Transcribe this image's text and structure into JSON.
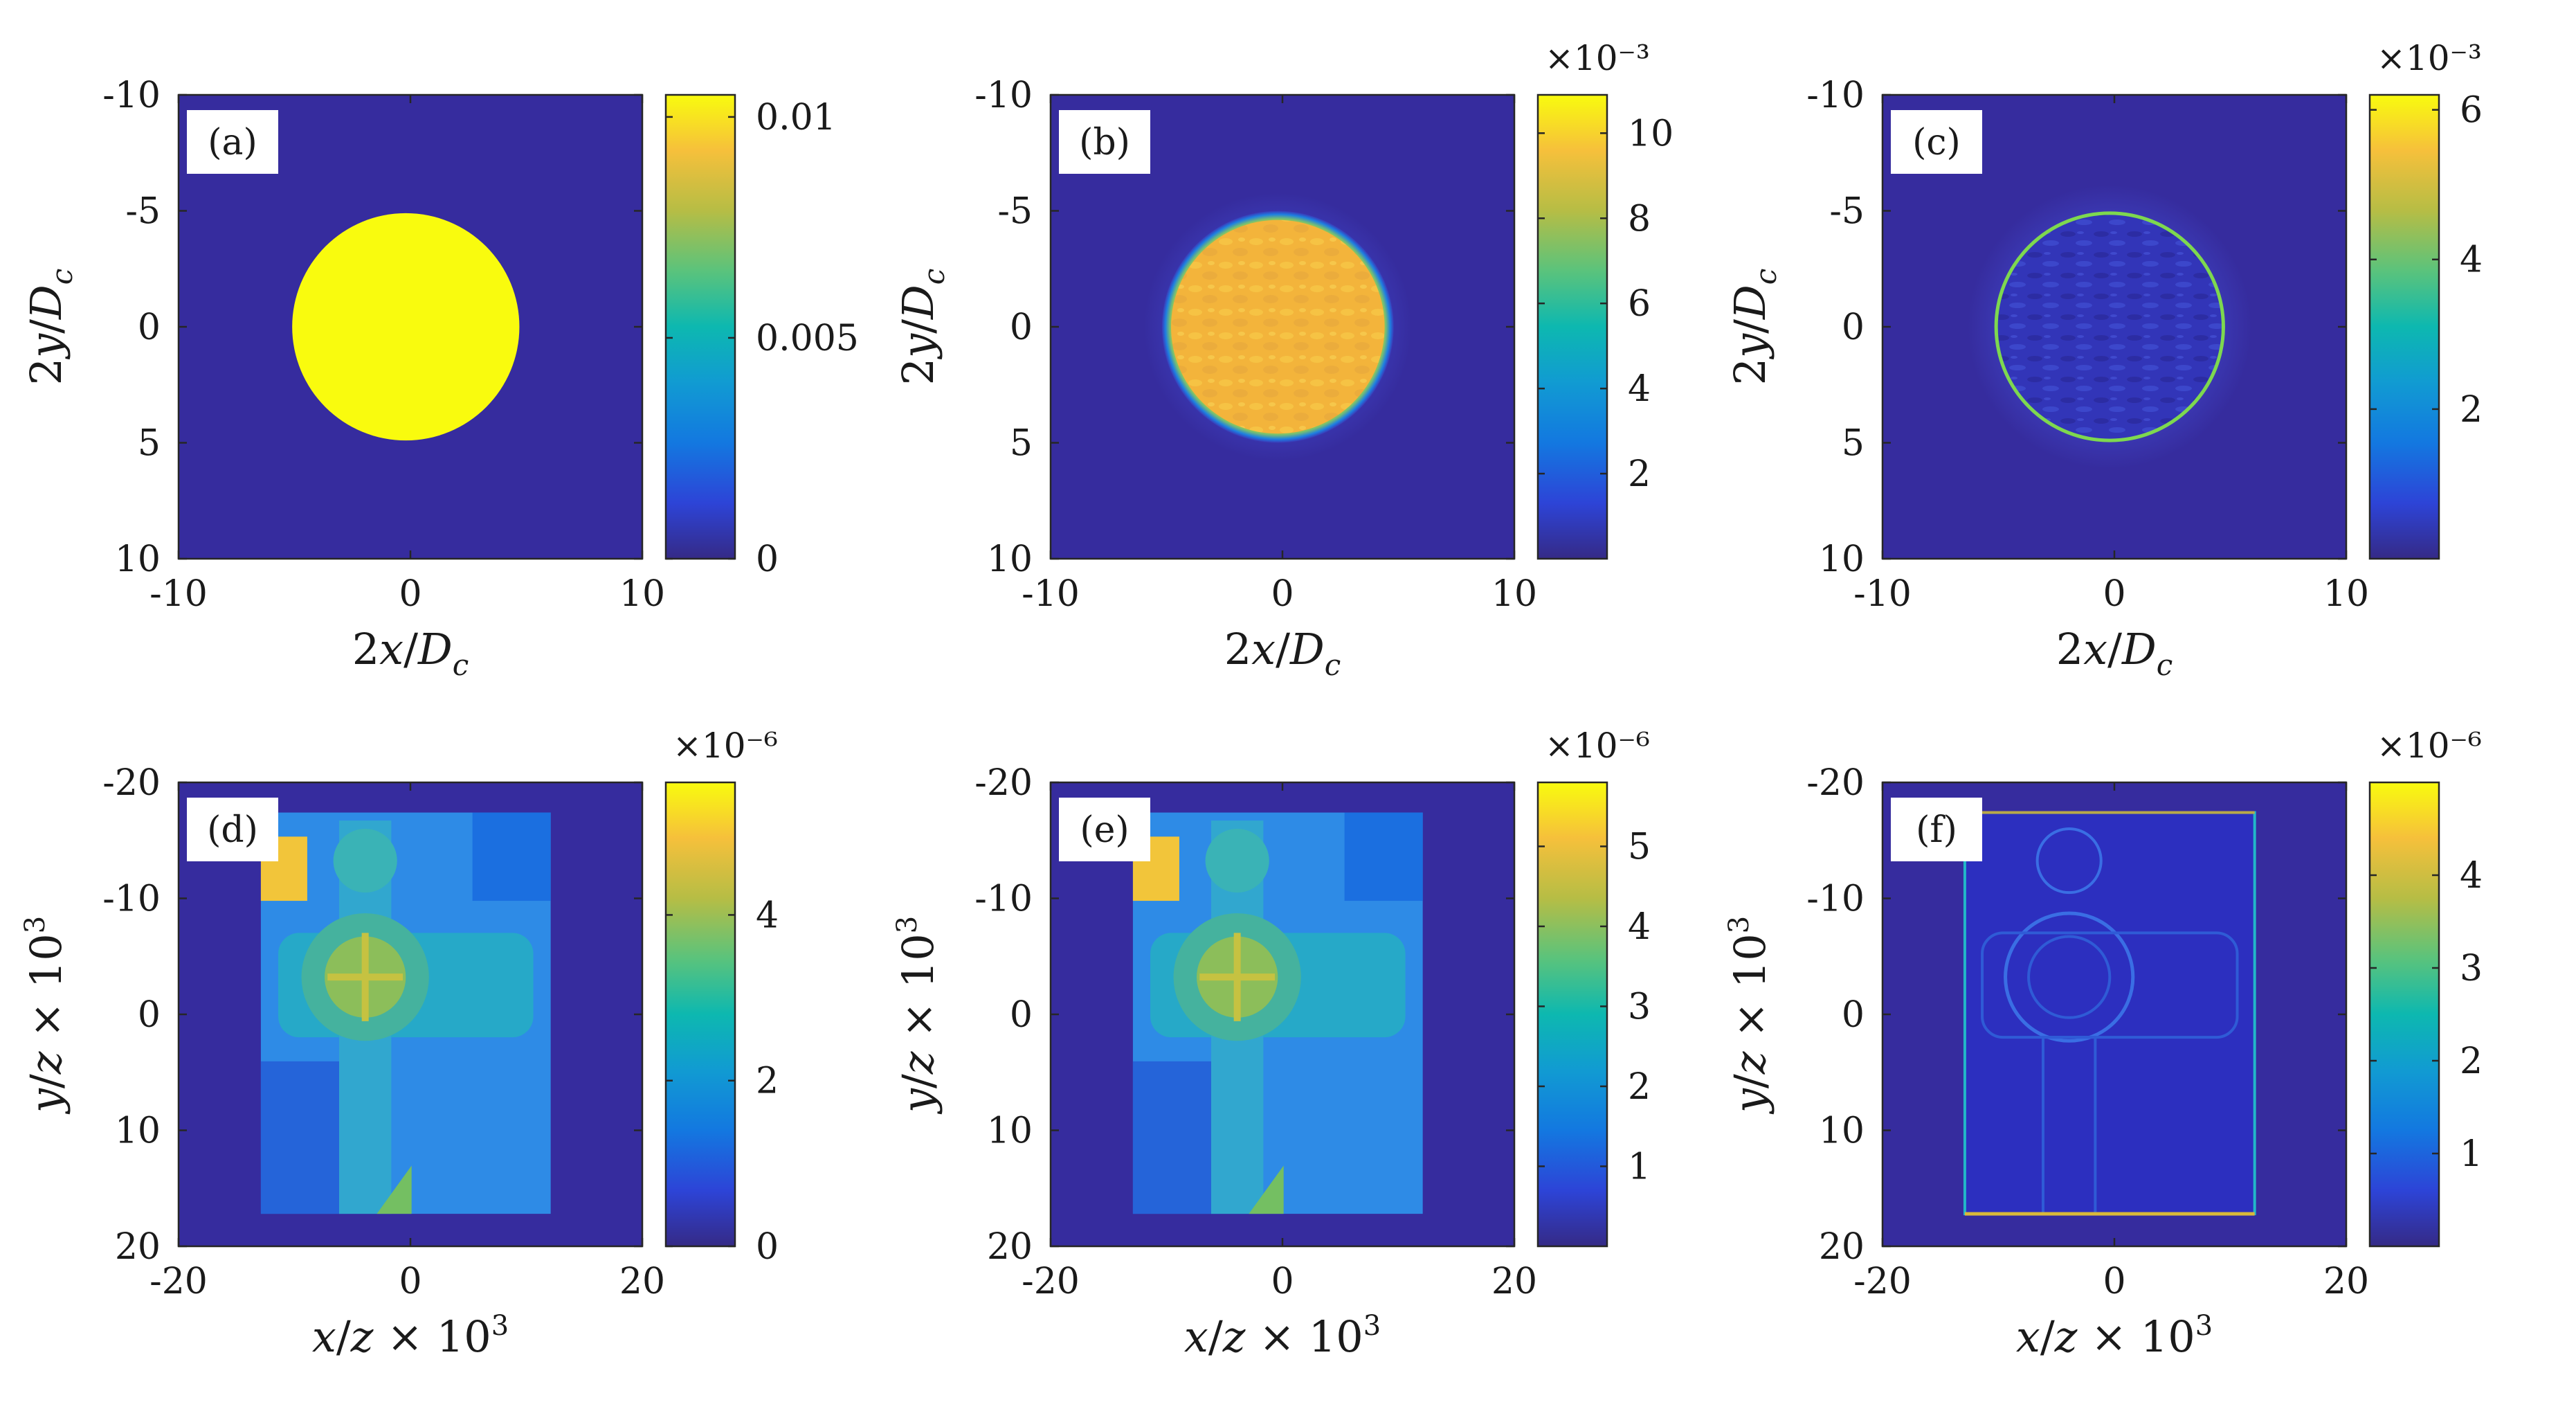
{
  "figure": {
    "panels": [
      {
        "id": "a",
        "tag": "(a)",
        "xlabel": "2x/D_c",
        "ylabel": "2y/D_c",
        "xticks": [
          "-10",
          "0",
          "10"
        ],
        "yticks": [
          "-10",
          "-5",
          "0",
          "5",
          "10"
        ],
        "colorbar": {
          "ticks": [
            "0",
            "0.005",
            "0.01"
          ],
          "exponent": ""
        }
      },
      {
        "id": "b",
        "tag": "(b)",
        "xlabel": "2x/D_c",
        "ylabel": "2y/D_c",
        "xticks": [
          "-10",
          "0",
          "10"
        ],
        "yticks": [
          "-10",
          "-5",
          "0",
          "5",
          "10"
        ],
        "colorbar": {
          "ticks": [
            "2",
            "4",
            "6",
            "8",
            "10"
          ],
          "exponent": "×10⁻³"
        }
      },
      {
        "id": "c",
        "tag": "(c)",
        "xlabel": "2x/D_c",
        "ylabel": "2y/D_c",
        "xticks": [
          "-10",
          "0",
          "10"
        ],
        "yticks": [
          "-10",
          "-5",
          "0",
          "5",
          "10"
        ],
        "colorbar": {
          "ticks": [
            "2",
            "4",
            "6"
          ],
          "exponent": "×10⁻³"
        }
      },
      {
        "id": "d",
        "tag": "(d)",
        "xlabel": "x/z × 10³",
        "ylabel": "y/z × 10³",
        "xticks": [
          "-20",
          "0",
          "20"
        ],
        "yticks": [
          "-20",
          "-10",
          "0",
          "10",
          "20"
        ],
        "colorbar": {
          "ticks": [
            "0",
            "2",
            "4"
          ],
          "exponent": "×10⁻⁶"
        }
      },
      {
        "id": "e",
        "tag": "(e)",
        "xlabel": "x/z × 10³",
        "ylabel": "y/z × 10³",
        "xticks": [
          "-20",
          "0",
          "20"
        ],
        "yticks": [
          "-20",
          "-10",
          "0",
          "10",
          "20"
        ],
        "colorbar": {
          "ticks": [
            "1",
            "2",
            "3",
            "4",
            "5"
          ],
          "exponent": "×10⁻⁶"
        }
      },
      {
        "id": "f",
        "tag": "(f)",
        "xlabel": "x/z × 10³",
        "ylabel": "y/z × 10³",
        "xticks": [
          "-20",
          "0",
          "20"
        ],
        "yticks": [
          "-20",
          "-10",
          "0",
          "10",
          "20"
        ],
        "colorbar": {
          "ticks": [
            "1",
            "2",
            "3",
            "4"
          ],
          "exponent": "×10⁻⁶"
        }
      }
    ]
  },
  "chart_data": [
    {
      "type": "heatmap",
      "title": "(a)",
      "xlabel": "2x/D_c",
      "ylabel": "2y/D_c",
      "xlim": [
        -10,
        10
      ],
      "ylim": [
        -10,
        10
      ],
      "xtick_values": [
        -10,
        0,
        10
      ],
      "ytick_values": [
        -10,
        -5,
        0,
        5,
        10
      ],
      "colorbar": {
        "min": 0,
        "max": 0.0105,
        "tick_values": [
          0,
          0.005,
          0.01
        ]
      },
      "content": {
        "shape": "uniform disk",
        "center": [
          -0.2,
          0
        ],
        "radius": 4.9,
        "inside_value": 0.0105,
        "outside_value": 0
      }
    },
    {
      "type": "heatmap",
      "title": "(b)",
      "xlabel": "2x/D_c",
      "ylabel": "2y/D_c",
      "xlim": [
        -10,
        10
      ],
      "ylim": [
        -10,
        10
      ],
      "xtick_values": [
        -10,
        0,
        10
      ],
      "ytick_values": [
        -10,
        -5,
        0,
        5,
        10
      ],
      "colorbar": {
        "min": 0,
        "max": 0.0109,
        "tick_values": [
          0.002,
          0.004,
          0.006,
          0.008,
          0.01
        ]
      },
      "content": {
        "shape": "noisy disk with soft edge",
        "center": [
          -0.2,
          0
        ],
        "radius": 4.9,
        "inside_value": 0.0088,
        "outside_value": 0
      }
    },
    {
      "type": "heatmap",
      "title": "(c)",
      "xlabel": "2x/D_c",
      "ylabel": "2y/D_c",
      "xlim": [
        -10,
        10
      ],
      "ylim": [
        -10,
        10
      ],
      "xtick_values": [
        -10,
        0,
        10
      ],
      "ytick_values": [
        -10,
        -5,
        0,
        5,
        10
      ],
      "colorbar": {
        "min": 0,
        "max": 0.0062,
        "tick_values": [
          0.002,
          0.004,
          0.006
        ]
      },
      "content": {
        "shape": "error map: bright ring at disk boundary",
        "center": [
          -0.2,
          0
        ],
        "radius": 4.9,
        "ring_value": 0.0045,
        "inside_value": 0.0004,
        "outside_value": 0
      }
    },
    {
      "type": "heatmap",
      "title": "(d)",
      "xlabel": "x/z × 10³",
      "ylabel": "y/z × 10³",
      "xlim": [
        -20,
        20
      ],
      "ylim": [
        -20,
        20
      ],
      "xtick_values": [
        -20,
        0,
        20
      ],
      "ytick_values": [
        -20,
        -10,
        0,
        10,
        20
      ],
      "colorbar": {
        "min": 0,
        "max": 5.6e-06,
        "tick_values": [
          0,
          2e-06,
          4e-06
        ]
      },
      "content": {
        "shape": "cross-shaped image",
        "x_extent": [
          -12.9,
          12.1
        ],
        "y_extent": [
          -17.4,
          17.2
        ]
      }
    },
    {
      "type": "heatmap",
      "title": "(e)",
      "xlabel": "x/z × 10³",
      "ylabel": "y/z × 10³",
      "xlim": [
        -20,
        20
      ],
      "ylim": [
        -20,
        20
      ],
      "xtick_values": [
        -20,
        0,
        20
      ],
      "ytick_values": [
        -20,
        -10,
        0,
        10,
        20
      ],
      "colorbar": {
        "min": 0,
        "max": 5.8e-06,
        "tick_values": [
          1e-06,
          2e-06,
          3e-06,
          4e-06,
          5e-06
        ]
      },
      "content": {
        "shape": "cross-shaped image (reconstruction)",
        "x_extent": [
          -12.9,
          12.1
        ],
        "y_extent": [
          -17.4,
          17.2
        ]
      }
    },
    {
      "type": "heatmap",
      "title": "(f)",
      "xlabel": "x/z × 10³",
      "ylabel": "y/z × 10³",
      "xlim": [
        -20,
        20
      ],
      "ylim": [
        -20,
        20
      ],
      "xtick_values": [
        -20,
        0,
        20
      ],
      "ytick_values": [
        -20,
        -10,
        0,
        10,
        20
      ],
      "colorbar": {
        "min": 0,
        "max": 5e-06,
        "tick_values": [
          1e-06,
          2e-06,
          3e-06,
          4e-06
        ]
      },
      "content": {
        "shape": "error map: edges of the cross image",
        "x_extent": [
          -12.9,
          12.1
        ],
        "y_extent": [
          -17.4,
          17.2
        ]
      }
    }
  ]
}
